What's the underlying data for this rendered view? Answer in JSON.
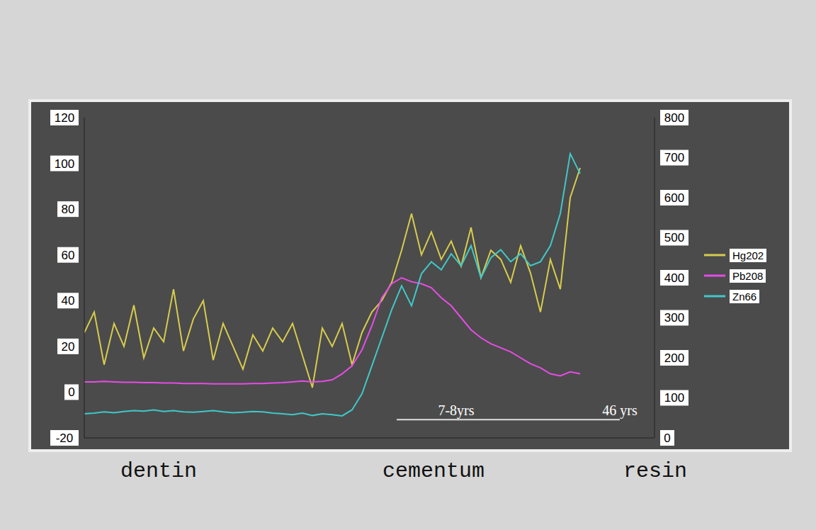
{
  "chart_data": {
    "type": "line",
    "x": [
      0,
      2,
      4,
      6,
      8,
      10,
      12,
      14,
      16,
      18,
      20,
      22,
      24,
      26,
      28,
      30,
      32,
      34,
      36,
      38,
      40,
      42,
      44,
      46,
      48,
      50,
      52,
      54,
      56,
      58,
      60,
      62,
      64,
      66,
      68,
      70,
      72,
      74,
      76,
      78,
      80,
      82,
      84,
      86,
      88,
      90,
      92,
      94,
      96,
      98,
      100
    ],
    "xlim": [
      0,
      115
    ],
    "xticks": [],
    "ylim": [
      -20,
      120
    ],
    "yticks": [
      -20,
      0,
      20,
      40,
      60,
      80,
      100,
      120
    ],
    "y2lim": [
      0,
      800
    ],
    "y2ticks": [
      0,
      100,
      200,
      300,
      400,
      500,
      600,
      700,
      800
    ],
    "series": [
      {
        "name": "Hg202",
        "color": "#d8cc4c",
        "values": [
          26,
          35,
          12,
          30,
          20,
          38,
          15,
          28,
          22,
          45,
          18,
          32,
          40,
          14,
          30,
          20,
          10,
          25,
          18,
          28,
          22,
          30,
          16,
          2,
          28,
          20,
          30,
          12,
          26,
          35,
          40,
          48,
          62,
          78,
          60,
          70,
          58,
          66,
          55,
          72,
          50,
          62,
          58,
          48,
          64,
          52,
          35,
          58,
          45,
          85,
          98
        ]
      },
      {
        "name": "Pb208",
        "color": "#e64ce6",
        "axis": "y2",
        "values": [
          140,
          140,
          141,
          140,
          139,
          139,
          138,
          138,
          137,
          137,
          136,
          136,
          136,
          135,
          135,
          135,
          135,
          136,
          136,
          137,
          138,
          140,
          142,
          140,
          141,
          145,
          160,
          180,
          220,
          280,
          350,
          385,
          400,
          390,
          385,
          375,
          350,
          330,
          300,
          270,
          250,
          235,
          225,
          215,
          200,
          185,
          175,
          160,
          155,
          165,
          160
        ]
      },
      {
        "name": "Zn66",
        "color": "#40c8c8",
        "axis": "y2",
        "values": [
          60,
          62,
          65,
          63,
          66,
          68,
          67,
          70,
          66,
          68,
          65,
          64,
          66,
          68,
          65,
          63,
          64,
          66,
          65,
          62,
          60,
          58,
          62,
          56,
          60,
          58,
          55,
          70,
          110,
          180,
          250,
          320,
          380,
          330,
          410,
          440,
          420,
          460,
          430,
          480,
          400,
          450,
          470,
          440,
          460,
          430,
          440,
          480,
          560,
          710,
          660
        ]
      }
    ],
    "annotations": [
      {
        "text": "7-8yrs",
        "x": 75,
        "y": -12
      },
      {
        "text": "46 yrs",
        "x": 108,
        "y": -12
      }
    ],
    "scale_bar": {
      "x": [
        63,
        108
      ],
      "y": -12
    },
    "legend": "right",
    "grid": false,
    "tick_labels": "y"
  },
  "region_labels": [
    "dentin",
    "cementum",
    "resin"
  ]
}
